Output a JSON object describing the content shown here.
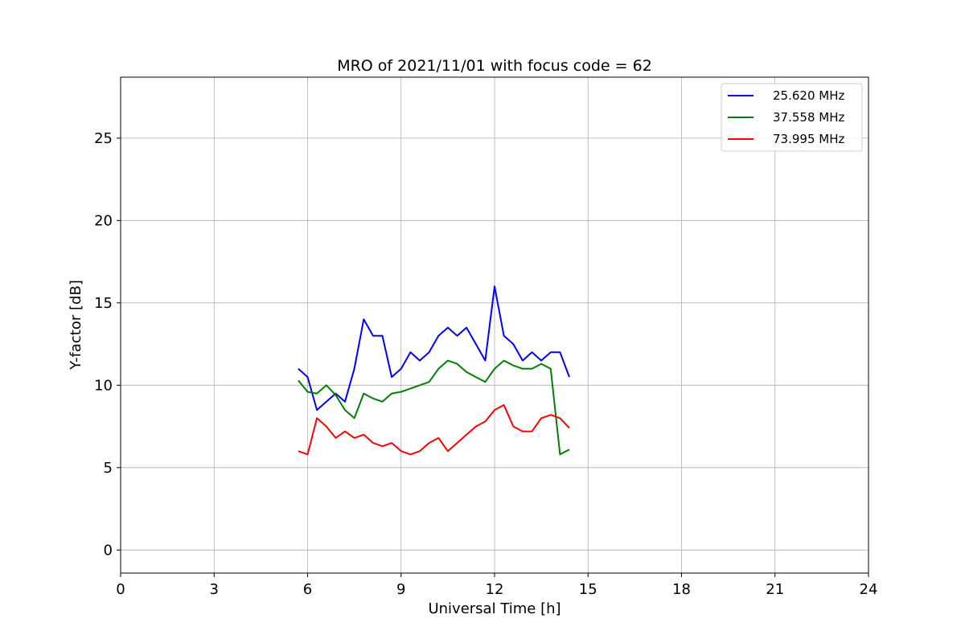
{
  "chart_data": {
    "type": "line",
    "title": "MRO of 2021/11/01 with focus code = 62",
    "xlabel": "Universal Time [h]",
    "ylabel": "Y-factor [dB]",
    "xlim": [
      0,
      24
    ],
    "ylim": [
      -1.4,
      28.7
    ],
    "xticks": [
      0,
      3,
      6,
      9,
      12,
      15,
      18,
      21,
      24
    ],
    "yticks": [
      0,
      5,
      10,
      15,
      20,
      25
    ],
    "grid": true,
    "legend_position": "top-right",
    "series": [
      {
        "name": "25.620 MHz",
        "color": "#0000ff",
        "x": [
          5.7,
          6.0,
          6.3,
          6.6,
          6.9,
          7.2,
          7.5,
          7.8,
          8.1,
          8.4,
          8.7,
          9.0,
          9.3,
          9.6,
          9.9,
          10.2,
          10.5,
          10.8,
          11.1,
          11.4,
          11.7,
          12.0,
          12.3,
          12.6,
          12.9,
          13.2,
          13.5,
          13.8,
          14.1,
          14.4
        ],
        "values": [
          11.0,
          10.5,
          8.5,
          9.0,
          9.5,
          9.0,
          11.0,
          14.0,
          13.0,
          13.0,
          10.5,
          11.0,
          12.0,
          11.5,
          12.0,
          13.0,
          13.5,
          13.0,
          13.5,
          12.5,
          11.5,
          16.0,
          13.0,
          12.5,
          11.5,
          12.0,
          11.5,
          12.0,
          12.0,
          10.5
        ]
      },
      {
        "name": "37.558 MHz",
        "color": "#008000",
        "x": [
          5.7,
          6.0,
          6.3,
          6.6,
          6.9,
          7.2,
          7.5,
          7.8,
          8.1,
          8.4,
          8.7,
          9.0,
          9.3,
          9.6,
          9.9,
          10.2,
          10.5,
          10.8,
          11.1,
          11.4,
          11.7,
          12.0,
          12.3,
          12.6,
          12.9,
          13.2,
          13.5,
          13.8,
          14.1,
          14.4
        ],
        "values": [
          10.3,
          9.6,
          9.5,
          10.0,
          9.4,
          8.5,
          8.0,
          9.5,
          9.2,
          9.0,
          9.5,
          9.6,
          9.8,
          10.0,
          10.2,
          11.0,
          11.5,
          11.3,
          10.8,
          10.5,
          10.2,
          11.0,
          11.5,
          11.2,
          11.0,
          11.0,
          11.3,
          11.0,
          5.8,
          6.1
        ]
      },
      {
        "name": "73.995 MHz",
        "color": "#ff0000",
        "x": [
          5.7,
          6.0,
          6.3,
          6.6,
          6.9,
          7.2,
          7.5,
          7.8,
          8.1,
          8.4,
          8.7,
          9.0,
          9.3,
          9.6,
          9.9,
          10.2,
          10.5,
          10.8,
          11.1,
          11.4,
          11.7,
          12.0,
          12.3,
          12.6,
          12.9,
          13.2,
          13.5,
          13.8,
          14.1,
          14.4
        ],
        "values": [
          6.0,
          5.8,
          8.0,
          7.5,
          6.8,
          7.2,
          6.8,
          7.0,
          6.5,
          6.3,
          6.5,
          6.0,
          5.8,
          6.0,
          6.5,
          6.8,
          6.0,
          6.5,
          7.0,
          7.5,
          7.8,
          8.5,
          8.8,
          7.5,
          7.2,
          7.2,
          8.0,
          8.2,
          8.0,
          7.4
        ]
      }
    ]
  }
}
